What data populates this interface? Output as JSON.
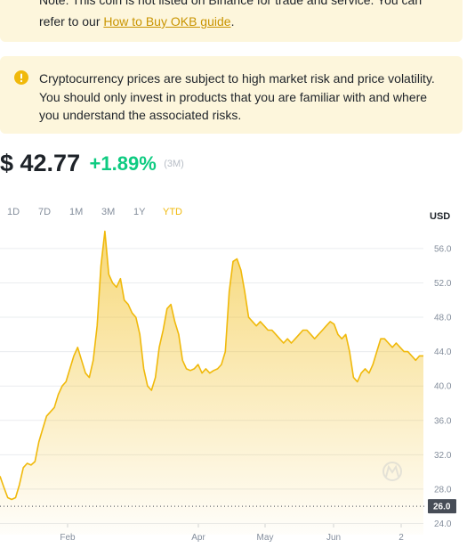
{
  "note": {
    "line1": "Note: This coin is not listed on Binance for trade and service. You can",
    "line2_prefix": "refer to our ",
    "link": "How to Buy OKB guide",
    "line2_suffix": "."
  },
  "warning": {
    "icon": "exclamation-circle-icon",
    "text": "Cryptocurrency prices are subject to high market risk and price volatility. You should only invest in products that you are familiar with and where you understand the associated risks."
  },
  "price": {
    "value": "$ 42.77",
    "change": "+1.89%",
    "period": "(3M)"
  },
  "colors": {
    "accent": "#f0b90b",
    "positive": "#0ecb81",
    "banner": "#fdf6dc",
    "text": "#1e2329",
    "muted": "#848e9c"
  },
  "tabs": [
    {
      "label": "1D",
      "active": false
    },
    {
      "label": "7D",
      "active": false
    },
    {
      "label": "1M",
      "active": false
    },
    {
      "label": "3M",
      "active": false
    },
    {
      "label": "1Y",
      "active": false
    },
    {
      "label": "YTD",
      "active": true
    }
  ],
  "currency": "USD",
  "chart_data": {
    "type": "area",
    "title": "",
    "xlabel": "",
    "ylabel": "",
    "x_tick_labels": [
      "Feb",
      "Apr",
      "May",
      "Jun",
      "2"
    ],
    "y_tick_labels": [
      "24.0",
      "26.0",
      "28.0",
      "32.0",
      "36.0",
      "40.0",
      "44.0",
      "48.0",
      "52.0",
      "56.0"
    ],
    "ylim": [
      22.7,
      59
    ],
    "baseline": {
      "value": 26.0,
      "label": "26.0"
    },
    "grid": true,
    "series": [
      {
        "values": [
          29.5,
          28.2,
          27.0,
          26.8,
          27.0,
          28.5,
          30.5,
          31.0,
          30.8,
          31.2,
          33.5,
          35.0,
          36.5,
          37.0,
          37.5,
          39.0,
          40.0,
          40.5,
          42.0,
          43.5,
          44.5,
          43.0,
          41.5,
          41.0,
          43.0,
          47.0,
          54.0,
          58.0,
          53.0,
          52.0,
          51.5,
          52.5,
          50.0,
          49.5,
          48.5,
          48.0,
          46.0,
          42.0,
          40.0,
          39.5,
          41.0,
          44.5,
          46.5,
          49.0,
          49.5,
          47.5,
          46.0,
          43.0,
          42.0,
          41.8,
          42.0,
          42.5,
          41.5,
          42.0,
          41.5,
          41.8,
          42.0,
          42.5,
          44.0,
          51.0,
          54.5,
          54.8,
          53.5,
          51.0,
          48.0,
          47.5,
          47.0,
          47.5,
          47.0,
          46.5,
          46.5,
          46.0,
          45.5,
          45.0,
          45.5,
          45.0,
          45.5,
          46.0,
          46.5,
          46.5,
          46.0,
          45.5,
          46.0,
          46.5,
          47.0,
          47.5,
          47.2,
          46.0,
          45.5,
          46.0,
          44.0,
          41.0,
          40.5,
          41.5,
          42.0,
          41.5,
          42.5,
          44.0,
          45.5,
          45.5,
          45.0,
          44.5,
          45.0,
          44.5,
          44.0,
          44.0,
          43.5,
          43.0,
          43.5,
          43.5
        ]
      }
    ]
  }
}
